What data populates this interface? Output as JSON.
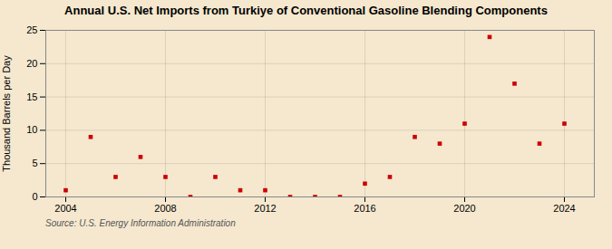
{
  "chart_data": {
    "type": "scatter",
    "title": "Annual U.S. Net Imports from Turkiye of Conventional Gasoline Blending Components",
    "ylabel": "Thousand Barrels per Day",
    "source": "Source: U.S. Energy Information Administration",
    "x": [
      2004,
      2005,
      2006,
      2007,
      2008,
      2009,
      2010,
      2011,
      2012,
      2013,
      2014,
      2015,
      2016,
      2017,
      2018,
      2019,
      2020,
      2021,
      2022,
      2023,
      2024
    ],
    "values": [
      1,
      9,
      3,
      6,
      3,
      0,
      3,
      1,
      1,
      0,
      0,
      0,
      2,
      3,
      9,
      8,
      11,
      24,
      17,
      8,
      11
    ],
    "color": "#cc0000",
    "marker": "square",
    "xlim": [
      2003.2,
      2025.2
    ],
    "ylim": [
      0,
      25
    ],
    "xticks": [
      2004,
      2008,
      2012,
      2016,
      2020,
      2024
    ],
    "yticks": [
      0,
      5,
      10,
      15,
      20,
      25
    ],
    "grid": true
  }
}
